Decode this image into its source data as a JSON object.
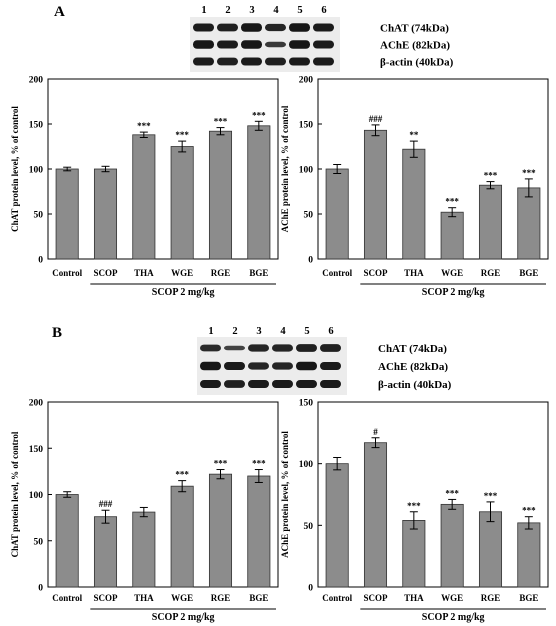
{
  "panels": [
    {
      "letter": "A",
      "blot": {
        "lanes": [
          "1",
          "2",
          "3",
          "4",
          "5",
          "6"
        ],
        "bands": [
          "ChAT (74kDa)",
          "AChE (82kDa)",
          "β-actin (40kDa)"
        ]
      }
    },
    {
      "letter": "B",
      "blot": {
        "lanes": [
          "1",
          "2",
          "3",
          "4",
          "5",
          "6"
        ],
        "bands": [
          "ChAT (74kDa)",
          "AChE (82kDa)",
          "β-actin (40kDa)"
        ]
      }
    }
  ],
  "chart_data": [
    {
      "type": "bar",
      "panel": "A",
      "categories": [
        "Control",
        "SCOP",
        "THA",
        "WGE",
        "RGE",
        "BGE"
      ],
      "values": [
        100,
        100,
        138,
        125,
        142,
        148
      ],
      "errors": [
        2,
        3,
        3,
        6,
        4,
        5
      ],
      "annotations": [
        "",
        "",
        "***",
        "***",
        "***",
        "***"
      ],
      "ylabel": "ChAT protein level, % of control",
      "yticks": [
        0,
        50,
        100,
        150,
        200
      ],
      "ylim": [
        0,
        200
      ],
      "group_label": "SCOP 2 mg/kg"
    },
    {
      "type": "bar",
      "panel": "A",
      "categories": [
        "Control",
        "SCOP",
        "THA",
        "WGE",
        "RGE",
        "BGE"
      ],
      "values": [
        100,
        143,
        122,
        52,
        82,
        79
      ],
      "errors": [
        5,
        6,
        9,
        5,
        4,
        10
      ],
      "annotations": [
        "",
        "###",
        "**",
        "***",
        "***",
        "***"
      ],
      "ylabel": "AChE protein level, % of control",
      "yticks": [
        0,
        50,
        100,
        150,
        200
      ],
      "ylim": [
        0,
        200
      ],
      "group_label": "SCOP 2 mg/kg"
    },
    {
      "type": "bar",
      "panel": "B",
      "categories": [
        "Control",
        "SCOP",
        "THA",
        "WGE",
        "RGE",
        "BGE"
      ],
      "values": [
        100,
        76,
        81,
        109,
        122,
        120
      ],
      "errors": [
        3,
        7,
        5,
        6,
        5,
        7
      ],
      "annotations": [
        "",
        "###",
        "",
        "***",
        "***",
        "***"
      ],
      "ylabel": "ChAT protein level, % of control",
      "yticks": [
        0,
        50,
        100,
        150,
        200
      ],
      "ylim": [
        0,
        200
      ],
      "group_label": "SCOP 2 mg/kg"
    },
    {
      "type": "bar",
      "panel": "B",
      "categories": [
        "Control",
        "SCOP",
        "THA",
        "WGE",
        "RGE",
        "BGE"
      ],
      "values": [
        100,
        117,
        54,
        67,
        61,
        52
      ],
      "errors": [
        5,
        4,
        7,
        4,
        8,
        5
      ],
      "annotations": [
        "",
        "#",
        "***",
        "***",
        "***",
        "***"
      ],
      "ylabel": "AChE protein level, % of control",
      "yticks": [
        0,
        50,
        100,
        150
      ],
      "ylim": [
        0,
        150
      ],
      "group_label": "SCOP 2 mg/kg"
    }
  ],
  "colors": {
    "bar": "#8c8c8c",
    "bar_stroke": "#333333",
    "axis": "#000000"
  }
}
